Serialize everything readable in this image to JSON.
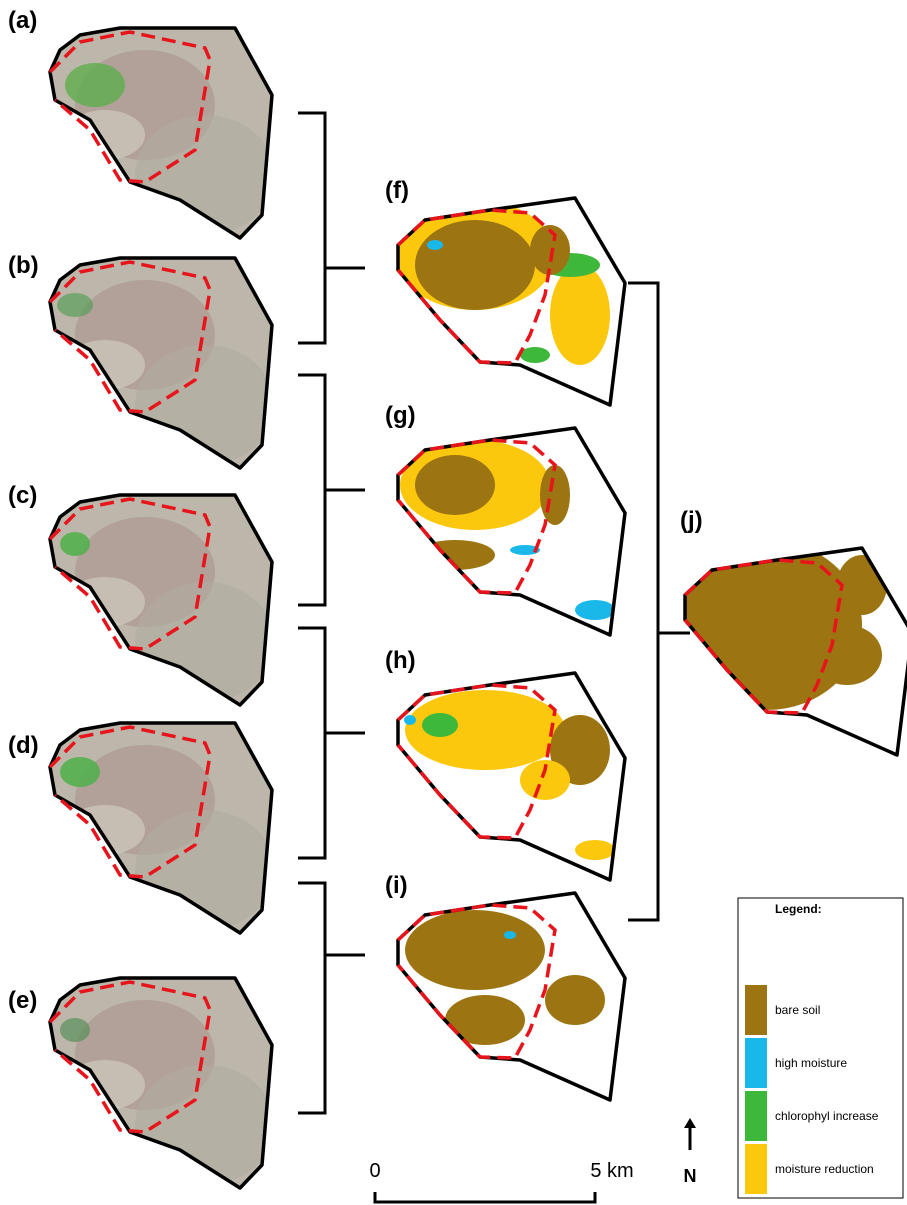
{
  "panels": {
    "labels": [
      "(a)",
      "(b)",
      "(c)",
      "(d)",
      "(e)",
      "(f)",
      "(g)",
      "(h)",
      "(i)",
      "(j)"
    ]
  },
  "legend": {
    "title": "Legend:",
    "items": [
      {
        "label": "bare soil",
        "color": "#9c7411"
      },
      {
        "label": "high moisture",
        "color": "#1ab8e8"
      },
      {
        "label": "chlorophyl increase",
        "color": "#3db83a"
      },
      {
        "label": "moisture reduction",
        "color": "#fcc80d"
      }
    ]
  },
  "scale_bar": {
    "start": "0",
    "end": "5 km"
  },
  "north": "N"
}
